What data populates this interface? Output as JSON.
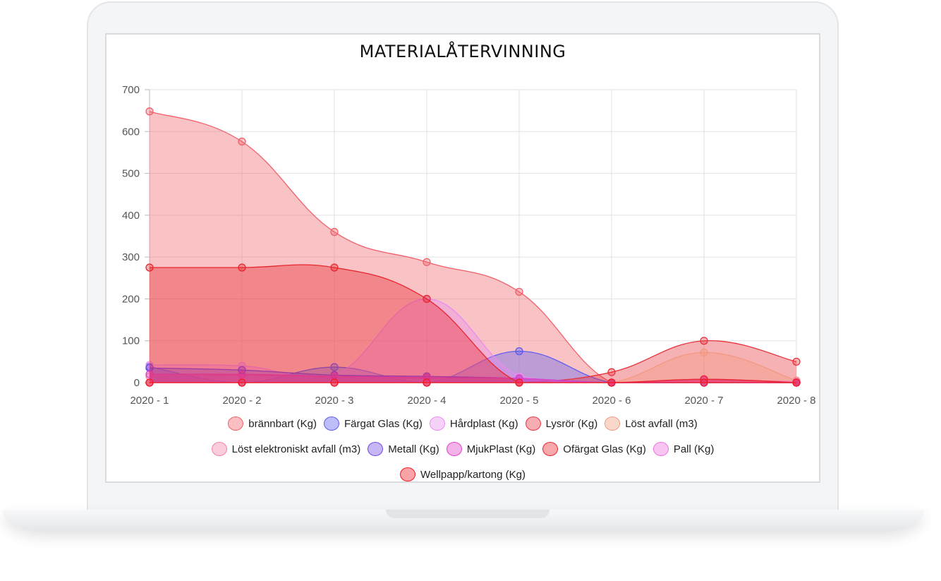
{
  "chart_data": {
    "type": "area",
    "title": "MATERIALÅTERVINNING",
    "xlabel": "",
    "ylabel": "",
    "ylim": [
      0,
      700
    ],
    "yticks": [
      0,
      100,
      200,
      300,
      400,
      500,
      600,
      700
    ],
    "categories": [
      "2020 - 1",
      "2020 - 2",
      "2020 - 3",
      "2020 - 4",
      "2020 - 5",
      "2020 - 6",
      "2020 - 7",
      "2020 - 8"
    ],
    "grid": true,
    "legend_position": "bottom",
    "series": [
      {
        "name": "brännbart (Kg)",
        "color": "#f0606a",
        "values": [
          648,
          576,
          360,
          288,
          217,
          0,
          0,
          0
        ]
      },
      {
        "name": "Färgat Glas (Kg)",
        "color": "#5b5cf0",
        "values": [
          38,
          0,
          37,
          0,
          75,
          0,
          0,
          0
        ]
      },
      {
        "name": "Hårdplast (Kg)",
        "color": "#e98bf0",
        "values": [
          42,
          40,
          18,
          200,
          15,
          0,
          0,
          0
        ]
      },
      {
        "name": "Lysrör (Kg)",
        "color": "#e8333d",
        "values": [
          0,
          0,
          0,
          0,
          0,
          25,
          100,
          50
        ]
      },
      {
        "name": "Löst avfall (m3)",
        "color": "#f39a7e",
        "values": [
          0,
          0,
          0,
          0,
          0,
          0,
          72,
          5
        ]
      },
      {
        "name": "Löst elektroniskt avfall (m3)",
        "color": "#f37fa8",
        "values": [
          15,
          18,
          12,
          10,
          8,
          0,
          5,
          3
        ]
      },
      {
        "name": "Metall (Kg)",
        "color": "#7048e8",
        "values": [
          35,
          30,
          18,
          15,
          10,
          0,
          0,
          0
        ]
      },
      {
        "name": "MjukPlast (Kg)",
        "color": "#e040c8",
        "values": [
          20,
          20,
          15,
          12,
          10,
          0,
          8,
          0
        ]
      },
      {
        "name": "Ofärgat Glas (Kg)",
        "color": "#e8262e",
        "values": [
          275,
          275,
          275,
          200,
          0,
          0,
          8,
          0
        ]
      },
      {
        "name": "Pall (Kg)",
        "color": "#f070e0",
        "values": [
          0,
          0,
          0,
          0,
          0,
          0,
          0,
          0
        ]
      },
      {
        "name": "Wellpapp/kartong (Kg)",
        "color": "#f01820",
        "values": [
          0,
          0,
          0,
          0,
          0,
          0,
          0,
          0
        ]
      }
    ]
  }
}
